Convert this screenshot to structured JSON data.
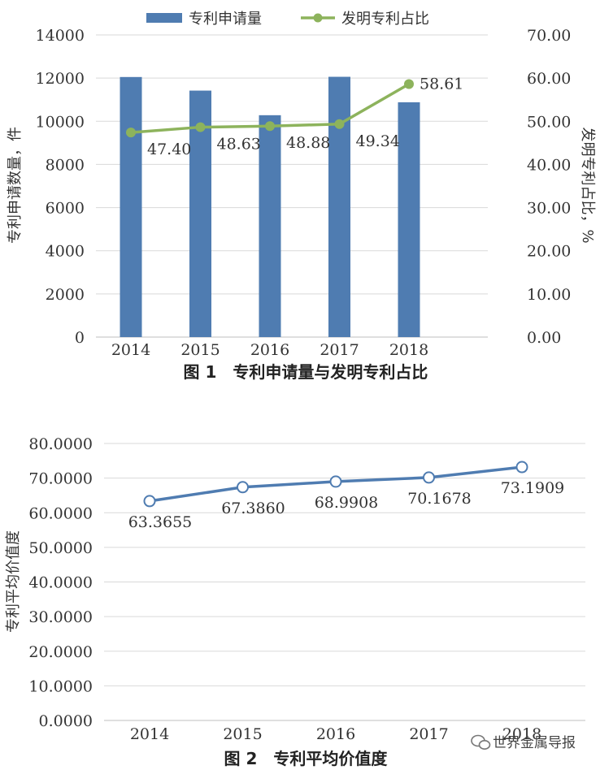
{
  "chart_data": [
    {
      "type": "bar",
      "title": "图 1　专利申请量与发明专利占比",
      "categories": [
        "2014",
        "2015",
        "2016",
        "2017",
        "2018"
      ],
      "series": [
        {
          "name": "专利申请量",
          "type": "bar",
          "axis": "left",
          "color": "#4f7cb1",
          "values": [
            12050,
            11420,
            10280,
            12060,
            10880
          ]
        },
        {
          "name": "发明专利占比",
          "type": "line",
          "axis": "right",
          "color": "#8db35c",
          "values": [
            47.4,
            48.63,
            48.88,
            49.34,
            58.61
          ],
          "labels": [
            "47.40",
            "48.63",
            "48.88",
            "49.34",
            "58.61"
          ]
        }
      ],
      "ylabel": "专利申请数量，件",
      "ylim": [
        0,
        14000
      ],
      "yticks": [
        "0",
        "2000",
        "4000",
        "6000",
        "8000",
        "10000",
        "12000",
        "14000"
      ],
      "y2label": "发明专利占比，%",
      "y2lim": [
        0,
        70
      ],
      "y2ticks": [
        "0.00",
        "10.00",
        "20.00",
        "30.00",
        "40.00",
        "50.00",
        "60.00",
        "70.00"
      ],
      "grid": true,
      "legend": "top"
    },
    {
      "type": "line",
      "title": "图 2　专利平均价值度",
      "categories": [
        "2014",
        "2015",
        "2016",
        "2017",
        "2018"
      ],
      "series": [
        {
          "color": "#4f7cb1",
          "values": [
            63.3655,
            67.386,
            68.9908,
            70.1678,
            73.1909
          ],
          "labels": [
            "63.3655",
            "67.3860",
            "68.9908",
            "70.1678",
            "73.1909"
          ]
        }
      ],
      "ylabel": "专利平均价值度",
      "ylim": [
        0,
        80
      ],
      "yticks": [
        "0.0000",
        "10.0000",
        "20.0000",
        "30.0000",
        "40.0000",
        "50.0000",
        "60.0000",
        "70.0000",
        "80.0000"
      ],
      "grid": true
    }
  ],
  "watermark": {
    "icon": "wechat-icon",
    "text": "世界金属导报"
  }
}
